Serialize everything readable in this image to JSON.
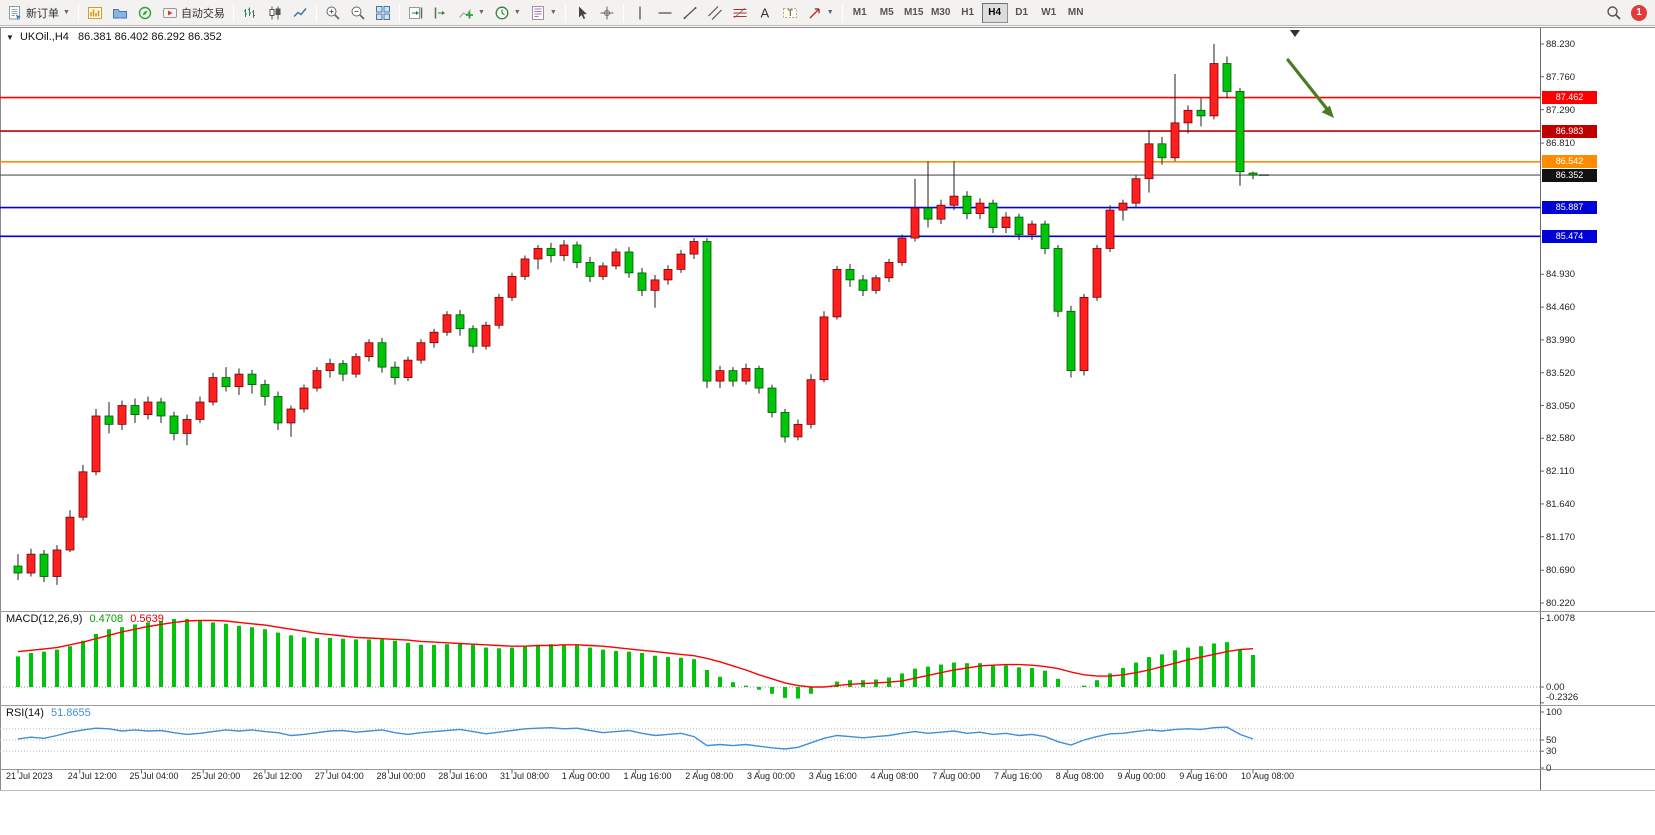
{
  "toolbar": {
    "new_order_label": "新订单",
    "autotrading_label": "自动交易",
    "timeframes": [
      "M1",
      "M5",
      "M15",
      "M30",
      "H1",
      "H4",
      "D1",
      "W1",
      "MN"
    ],
    "active_timeframe": "H4",
    "notification_count": "1"
  },
  "symbol_bar": {
    "symbol": "UKOil.,H4",
    "ohlc": "86.381 86.402 86.292 86.352"
  },
  "colors": {
    "bull": "#ff1f1f",
    "bull_border": "#7a0000",
    "bear": "#00c409",
    "bear_border": "#005a00",
    "wick": "#222222",
    "macd_hist": "#00c409",
    "macd_signal": "#ff0000",
    "rsi_line": "#3f8fd6",
    "arrow": "#4a7d1f",
    "current_line": "#555555"
  },
  "price_axis_labels": [
    "88.230",
    "87.760",
    "87.290",
    "86.810",
    "84.930",
    "84.460",
    "83.990",
    "83.520",
    "83.050",
    "82.580",
    "82.110",
    "81.640",
    "81.170",
    "80.690",
    "80.220"
  ],
  "hlines": [
    {
      "label": "87.462",
      "color": "#ff0000"
    },
    {
      "label": "86.983",
      "color": "#c00000"
    },
    {
      "label": "86.542",
      "color": "#ff8c00"
    },
    {
      "label": "85.887",
      "color": "#0000d8"
    },
    {
      "label": "85.474",
      "color": "#0000d8"
    }
  ],
  "current_price": {
    "label": "86.352",
    "color": "#111111"
  },
  "chart_data": {
    "type": "candlestick",
    "symbol": "UKOil",
    "timeframe": "H4",
    "price_range": [
      80.22,
      88.23
    ],
    "ohlc": [
      [
        80.75,
        80.92,
        80.55,
        80.65
      ],
      [
        80.65,
        81.0,
        80.6,
        80.92
      ],
      [
        80.92,
        80.98,
        80.52,
        80.6
      ],
      [
        80.6,
        81.05,
        80.48,
        80.98
      ],
      [
        80.98,
        81.55,
        80.95,
        81.45
      ],
      [
        81.45,
        82.2,
        81.4,
        82.1
      ],
      [
        82.1,
        83.0,
        82.05,
        82.9
      ],
      [
        82.9,
        83.1,
        82.65,
        82.78
      ],
      [
        82.78,
        83.12,
        82.7,
        83.05
      ],
      [
        83.05,
        83.15,
        82.8,
        82.92
      ],
      [
        82.92,
        83.18,
        82.85,
        83.1
      ],
      [
        83.1,
        83.16,
        82.8,
        82.9
      ],
      [
        82.9,
        82.96,
        82.55,
        82.65
      ],
      [
        82.65,
        82.92,
        82.48,
        82.85
      ],
      [
        82.85,
        83.18,
        82.8,
        83.1
      ],
      [
        83.1,
        83.52,
        83.05,
        83.45
      ],
      [
        83.45,
        83.6,
        83.25,
        83.32
      ],
      [
        83.32,
        83.58,
        83.2,
        83.5
      ],
      [
        83.5,
        83.56,
        83.22,
        83.35
      ],
      [
        83.35,
        83.42,
        83.05,
        83.18
      ],
      [
        83.18,
        83.25,
        82.7,
        82.8
      ],
      [
        82.8,
        83.05,
        82.6,
        83.0
      ],
      [
        83.0,
        83.35,
        82.95,
        83.3
      ],
      [
        83.3,
        83.6,
        83.25,
        83.55
      ],
      [
        83.55,
        83.72,
        83.45,
        83.65
      ],
      [
        83.65,
        83.7,
        83.4,
        83.5
      ],
      [
        83.5,
        83.8,
        83.45,
        83.75
      ],
      [
        83.75,
        84.0,
        83.68,
        83.95
      ],
      [
        83.95,
        84.02,
        83.52,
        83.6
      ],
      [
        83.6,
        83.68,
        83.35,
        83.45
      ],
      [
        83.45,
        83.75,
        83.4,
        83.7
      ],
      [
        83.7,
        84.0,
        83.65,
        83.95
      ],
      [
        83.95,
        84.15,
        83.88,
        84.1
      ],
      [
        84.1,
        84.4,
        84.05,
        84.35
      ],
      [
        84.35,
        84.42,
        84.05,
        84.15
      ],
      [
        84.15,
        84.2,
        83.8,
        83.9
      ],
      [
        83.9,
        84.25,
        83.85,
        84.2
      ],
      [
        84.2,
        84.65,
        84.15,
        84.6
      ],
      [
        84.6,
        84.95,
        84.55,
        84.9
      ],
      [
        84.9,
        85.2,
        84.85,
        85.15
      ],
      [
        85.15,
        85.35,
        85.0,
        85.3
      ],
      [
        85.3,
        85.38,
        85.1,
        85.2
      ],
      [
        85.2,
        85.42,
        85.12,
        85.35
      ],
      [
        85.35,
        85.4,
        85.02,
        85.1
      ],
      [
        85.1,
        85.18,
        84.82,
        84.9
      ],
      [
        84.9,
        85.1,
        84.85,
        85.05
      ],
      [
        85.05,
        85.3,
        85.0,
        85.25
      ],
      [
        85.25,
        85.32,
        84.88,
        84.95
      ],
      [
        84.95,
        85.02,
        84.62,
        84.7
      ],
      [
        84.7,
        84.92,
        84.45,
        84.85
      ],
      [
        84.85,
        85.06,
        84.78,
        85.0
      ],
      [
        85.0,
        85.28,
        84.95,
        85.22
      ],
      [
        85.22,
        85.45,
        85.15,
        85.4
      ],
      [
        85.4,
        85.45,
        83.3,
        83.4
      ],
      [
        83.4,
        83.62,
        83.3,
        83.55
      ],
      [
        83.55,
        83.6,
        83.32,
        83.4
      ],
      [
        83.4,
        83.65,
        83.35,
        83.58
      ],
      [
        83.58,
        83.62,
        83.22,
        83.3
      ],
      [
        83.3,
        83.35,
        82.88,
        82.95
      ],
      [
        82.95,
        83.0,
        82.52,
        82.6
      ],
      [
        82.6,
        82.85,
        82.55,
        82.78
      ],
      [
        82.78,
        83.5,
        82.72,
        83.42
      ],
      [
        83.42,
        84.4,
        83.38,
        84.32
      ],
      [
        84.32,
        85.05,
        84.28,
        85.0
      ],
      [
        85.0,
        85.08,
        84.75,
        84.85
      ],
      [
        84.85,
        84.92,
        84.62,
        84.7
      ],
      [
        84.7,
        84.92,
        84.65,
        84.88
      ],
      [
        84.88,
        85.15,
        84.82,
        85.1
      ],
      [
        85.1,
        85.5,
        85.05,
        85.45
      ],
      [
        85.45,
        86.3,
        85.4,
        85.88
      ],
      [
        85.88,
        86.55,
        85.6,
        85.72
      ],
      [
        85.72,
        86.0,
        85.65,
        85.92
      ],
      [
        85.92,
        86.55,
        85.85,
        86.05
      ],
      [
        86.05,
        86.12,
        85.72,
        85.8
      ],
      [
        85.8,
        86.02,
        85.72,
        85.95
      ],
      [
        85.95,
        86.0,
        85.52,
        85.6
      ],
      [
        85.6,
        85.82,
        85.52,
        85.75
      ],
      [
        85.75,
        85.8,
        85.42,
        85.5
      ],
      [
        85.5,
        85.7,
        85.42,
        85.65
      ],
      [
        85.65,
        85.7,
        85.22,
        85.3
      ],
      [
        85.3,
        85.35,
        84.32,
        84.4
      ],
      [
        84.4,
        84.48,
        83.45,
        83.55
      ],
      [
        83.55,
        84.65,
        83.48,
        84.6
      ],
      [
        84.6,
        85.35,
        84.55,
        85.3
      ],
      [
        85.3,
        85.92,
        85.25,
        85.85
      ],
      [
        85.85,
        86.0,
        85.7,
        85.95
      ],
      [
        85.95,
        86.35,
        85.88,
        86.3
      ],
      [
        86.3,
        87.0,
        86.1,
        86.8
      ],
      [
        86.8,
        86.9,
        86.5,
        86.6
      ],
      [
        86.6,
        87.8,
        86.55,
        87.1
      ],
      [
        87.1,
        87.35,
        86.95,
        87.28
      ],
      [
        87.28,
        87.45,
        87.05,
        87.2
      ],
      [
        87.2,
        88.23,
        87.15,
        87.95
      ],
      [
        87.95,
        88.05,
        87.45,
        87.55
      ],
      [
        87.55,
        87.6,
        86.2,
        86.4
      ],
      [
        86.381,
        86.402,
        86.292,
        86.352
      ]
    ],
    "macd": {
      "name": "MACD(12,26,9)",
      "value_main": "0.4708",
      "value_signal": "0.5639",
      "axis": [
        "1.0078",
        "0.00",
        "-0.2326"
      ],
      "hist": [
        0.45,
        0.5,
        0.52,
        0.55,
        0.6,
        0.68,
        0.78,
        0.85,
        0.88,
        0.92,
        0.95,
        0.97,
        1.0,
        1.0,
        0.98,
        0.95,
        0.93,
        0.9,
        0.88,
        0.85,
        0.8,
        0.76,
        0.73,
        0.72,
        0.72,
        0.71,
        0.7,
        0.7,
        0.7,
        0.68,
        0.65,
        0.62,
        0.62,
        0.63,
        0.64,
        0.62,
        0.58,
        0.57,
        0.58,
        0.6,
        0.62,
        0.63,
        0.62,
        0.61,
        0.58,
        0.55,
        0.53,
        0.52,
        0.5,
        0.46,
        0.44,
        0.43,
        0.41,
        0.25,
        0.15,
        0.07,
        0.02,
        -0.04,
        -0.1,
        -0.16,
        -0.17,
        -0.1,
        0.0,
        0.08,
        0.1,
        0.1,
        0.11,
        0.14,
        0.2,
        0.27,
        0.3,
        0.33,
        0.36,
        0.35,
        0.35,
        0.33,
        0.32,
        0.29,
        0.28,
        0.24,
        0.12,
        0.0,
        0.02,
        0.1,
        0.2,
        0.28,
        0.36,
        0.44,
        0.48,
        0.54,
        0.58,
        0.6,
        0.64,
        0.66,
        0.55,
        0.4708
      ],
      "signal": [
        0.52,
        0.54,
        0.56,
        0.58,
        0.62,
        0.66,
        0.71,
        0.76,
        0.81,
        0.85,
        0.89,
        0.92,
        0.95,
        0.97,
        0.98,
        0.98,
        0.97,
        0.95,
        0.93,
        0.91,
        0.88,
        0.85,
        0.82,
        0.79,
        0.77,
        0.75,
        0.73,
        0.72,
        0.71,
        0.7,
        0.69,
        0.67,
        0.66,
        0.65,
        0.64,
        0.63,
        0.62,
        0.61,
        0.6,
        0.6,
        0.61,
        0.61,
        0.62,
        0.62,
        0.61,
        0.6,
        0.58,
        0.56,
        0.54,
        0.52,
        0.5,
        0.48,
        0.46,
        0.42,
        0.37,
        0.31,
        0.25,
        0.18,
        0.12,
        0.06,
        0.02,
        0.0,
        0.0,
        0.02,
        0.04,
        0.05,
        0.06,
        0.07,
        0.09,
        0.13,
        0.17,
        0.21,
        0.25,
        0.28,
        0.31,
        0.32,
        0.33,
        0.33,
        0.32,
        0.3,
        0.27,
        0.22,
        0.18,
        0.16,
        0.16,
        0.18,
        0.21,
        0.25,
        0.3,
        0.35,
        0.4,
        0.44,
        0.48,
        0.52,
        0.55,
        0.5639
      ]
    },
    "rsi": {
      "name": "RSI(14)",
      "value": "51.8655",
      "axis": [
        "100",
        "50",
        "30",
        "0"
      ],
      "levels": [
        70,
        50,
        30
      ],
      "values": [
        52,
        55,
        53,
        58,
        64,
        68,
        71,
        70,
        66,
        68,
        66,
        67,
        63,
        60,
        62,
        65,
        68,
        66,
        68,
        65,
        63,
        58,
        60,
        63,
        66,
        67,
        64,
        66,
        68,
        63,
        60,
        63,
        65,
        67,
        69,
        65,
        61,
        64,
        67,
        70,
        71,
        72,
        70,
        71,
        67,
        63,
        65,
        67,
        62,
        58,
        60,
        62,
        56,
        40,
        42,
        40,
        42,
        39,
        36,
        34,
        37,
        45,
        53,
        58,
        56,
        54,
        56,
        58,
        62,
        65,
        62,
        64,
        66,
        62,
        64,
        60,
        62,
        58,
        60,
        56,
        47,
        41,
        50,
        56,
        61,
        62,
        65,
        68,
        66,
        69,
        70,
        69,
        72,
        73,
        60,
        51.87
      ]
    },
    "time_labels": [
      "21 Jul 2023",
      "24 Jul 12:00",
      "25 Jul 04:00",
      "25 Jul 20:00",
      "26 Jul 12:00",
      "27 Jul 04:00",
      "28 Jul 00:00",
      "28 Jul 16:00",
      "31 Jul 08:00",
      "1 Aug 00:00",
      "1 Aug 16:00",
      "2 Aug 08:00",
      "3 Aug 00:00",
      "3 Aug 16:00",
      "4 Aug 08:00",
      "7 Aug 00:00",
      "7 Aug 16:00",
      "8 Aug 08:00",
      "9 Aug 00:00",
      "9 Aug 16:00",
      "10 Aug 08:00"
    ]
  }
}
